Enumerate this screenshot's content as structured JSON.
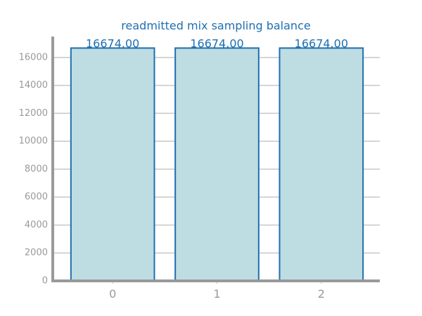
{
  "chart_data": {
    "type": "bar",
    "title": "readmitted mix sampling balance",
    "xlabel": "",
    "ylabel": "",
    "categories": [
      "0",
      "1",
      "2"
    ],
    "values": [
      16674.0,
      16674.0,
      16674.0
    ],
    "data_labels": [
      "16674.00",
      "16674.00",
      "16674.00"
    ],
    "ylim": [
      0,
      17500
    ],
    "yticks": [
      0,
      2000,
      4000,
      6000,
      8000,
      10000,
      12000,
      14000,
      16000
    ],
    "grid": true,
    "legend": "none",
    "colors": {
      "bar_fill": "#bedde2",
      "bar_edge": "#1f6fb0",
      "title": "#1f6fb0",
      "axis": "#999999"
    }
  }
}
